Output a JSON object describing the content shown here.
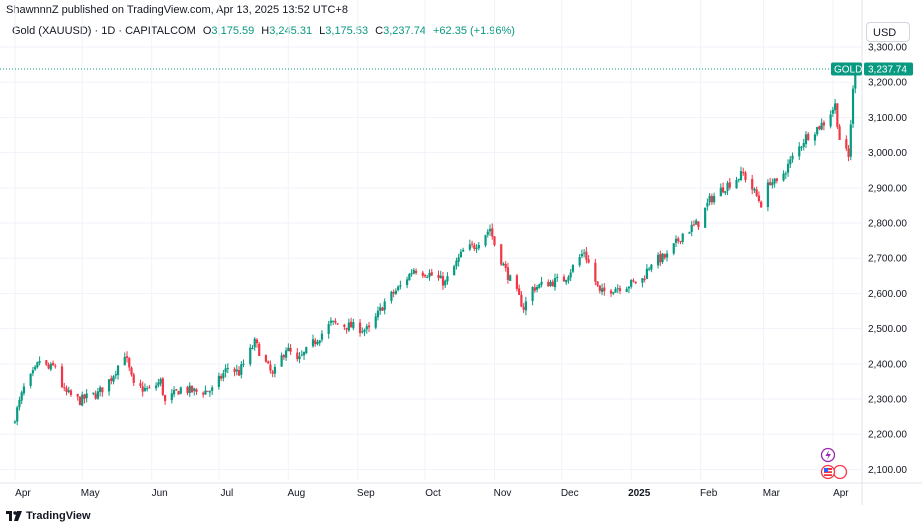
{
  "header": {
    "published_by": "ShawnnnZ published on TradingView.com, Apr 13, 2025 13:52 UTC+8"
  },
  "legend": {
    "symbol": "Gold (XAUUSD) · 1D · CAPITALCOM",
    "o_label": "O",
    "o_value": "3,175.59",
    "h_label": "H",
    "h_value": "3,245.31",
    "l_label": "L",
    "l_value": "3,175.53",
    "c_label": "C",
    "c_value": "3,237.74",
    "change": "+62.35 (+1.96%)"
  },
  "currency_button": "USD",
  "price_tag": {
    "label": "GOLD",
    "value": "3,237.74"
  },
  "footer": {
    "brand": "TradingView"
  },
  "colors": {
    "up": "#089981",
    "down": "#f23645",
    "grid": "#f0f3fa",
    "text": "#131722"
  },
  "icons": [
    "lightning-icon",
    "us-flag-icon"
  ],
  "chart_data": {
    "type": "candlestick",
    "symbol": "XAUUSD",
    "interval": "1D",
    "last_close": 3237.74,
    "ylim": [
      2070,
      3320
    ],
    "y_ticks": [
      "2,100.00",
      "2,200.00",
      "2,300.00",
      "2,400.00",
      "2,500.00",
      "2,600.00",
      "2,700.00",
      "2,800.00",
      "2,900.00",
      "3,000.00",
      "3,100.00",
      "3,200.00",
      "3,300.00"
    ],
    "x_ticks": [
      "Apr",
      "May",
      "Jun",
      "Jul",
      "Aug",
      "Sep",
      "Oct",
      "Nov",
      "Dec",
      "2025",
      "Feb",
      "Mar",
      "Apr"
    ],
    "grid": true,
    "price_path": [
      [
        "2024-04-01",
        2250
      ],
      [
        "2024-04-05",
        2330
      ],
      [
        "2024-04-10",
        2380
      ],
      [
        "2024-04-12",
        2410
      ],
      [
        "2024-04-16",
        2385
      ],
      [
        "2024-04-19",
        2395
      ],
      [
        "2024-04-23",
        2320
      ],
      [
        "2024-04-30",
        2295
      ],
      [
        "2024-05-03",
        2305
      ],
      [
        "2024-05-08",
        2315
      ],
      [
        "2024-05-14",
        2360
      ],
      [
        "2024-05-20",
        2430
      ],
      [
        "2024-05-24",
        2335
      ],
      [
        "2024-05-31",
        2325
      ],
      [
        "2024-06-05",
        2350
      ],
      [
        "2024-06-07",
        2290
      ],
      [
        "2024-06-14",
        2330
      ],
      [
        "2024-06-21",
        2320
      ],
      [
        "2024-06-28",
        2325
      ],
      [
        "2024-07-05",
        2390
      ],
      [
        "2024-07-10",
        2375
      ],
      [
        "2024-07-17",
        2460
      ],
      [
        "2024-07-25",
        2365
      ],
      [
        "2024-07-31",
        2445
      ],
      [
        "2024-08-05",
        2405
      ],
      [
        "2024-08-13",
        2465
      ],
      [
        "2024-08-20",
        2515
      ],
      [
        "2024-08-30",
        2505
      ],
      [
        "2024-09-06",
        2495
      ],
      [
        "2024-09-13",
        2575
      ],
      [
        "2024-09-20",
        2620
      ],
      [
        "2024-09-26",
        2670
      ],
      [
        "2024-10-03",
        2655
      ],
      [
        "2024-10-10",
        2630
      ],
      [
        "2024-10-18",
        2720
      ],
      [
        "2024-10-23",
        2735
      ],
      [
        "2024-10-30",
        2785
      ],
      [
        "2024-11-01",
        2740
      ],
      [
        "2024-11-06",
        2665
      ],
      [
        "2024-11-14",
        2560
      ],
      [
        "2024-11-18",
        2615
      ],
      [
        "2024-11-25",
        2630
      ],
      [
        "2024-12-02",
        2640
      ],
      [
        "2024-12-11",
        2720
      ],
      [
        "2024-12-18",
        2600
      ],
      [
        "2024-12-24",
        2615
      ],
      [
        "2024-12-31",
        2625
      ],
      [
        "2025-01-06",
        2640
      ],
      [
        "2025-01-10",
        2690
      ],
      [
        "2025-01-17",
        2705
      ],
      [
        "2025-01-24",
        2770
      ],
      [
        "2025-01-31",
        2800
      ],
      [
        "2025-02-05",
        2865
      ],
      [
        "2025-02-11",
        2900
      ],
      [
        "2025-02-20",
        2940
      ],
      [
        "2025-02-28",
        2855
      ],
      [
        "2025-03-04",
        2920
      ],
      [
        "2025-03-07",
        2910
      ],
      [
        "2025-03-14",
        2985
      ],
      [
        "2025-03-20",
        3045
      ],
      [
        "2025-03-28",
        3085
      ],
      [
        "2025-04-02",
        3135
      ],
      [
        "2025-04-04",
        3040
      ],
      [
        "2025-04-08",
        2985
      ],
      [
        "2025-04-09",
        3085
      ],
      [
        "2025-04-10",
        3175
      ],
      [
        "2025-04-11",
        3237.74
      ]
    ]
  }
}
